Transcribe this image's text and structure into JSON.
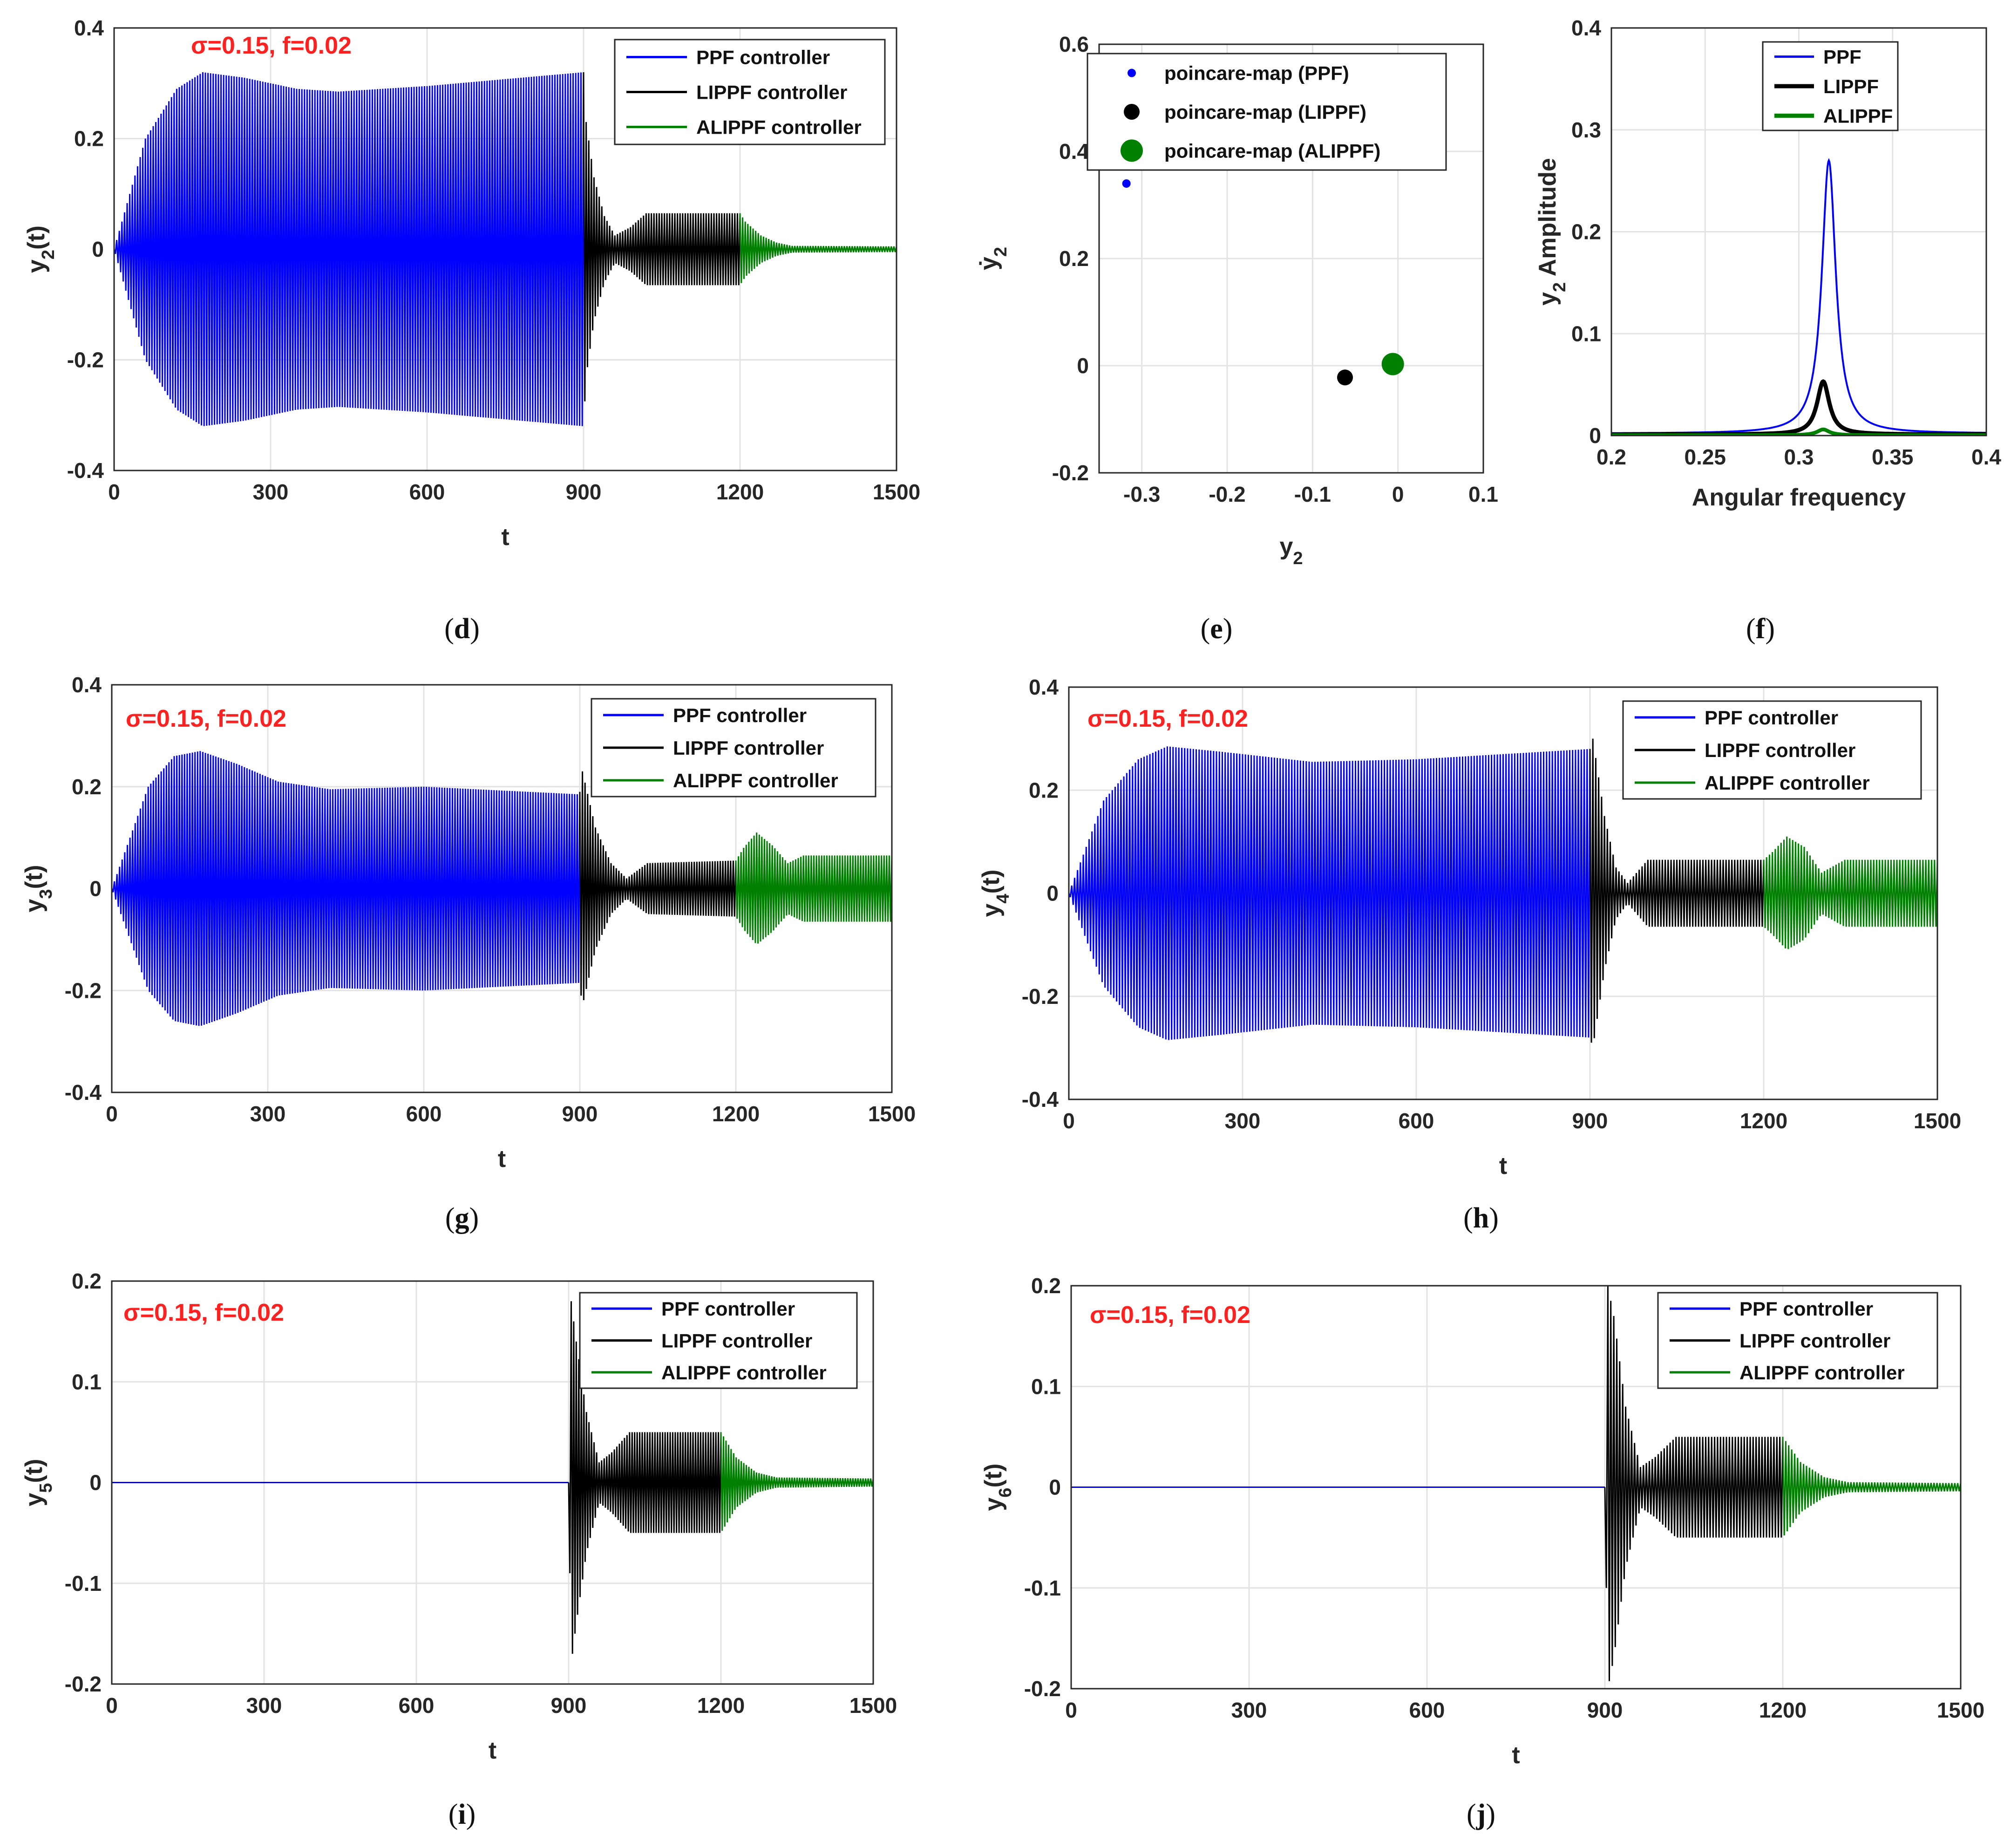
{
  "colors": {
    "ppf": "#0000ff",
    "lippf": "#000000",
    "alippf": "#008000",
    "annotation": "#ff2020",
    "grid": "#e3e3e3"
  },
  "chart_data": [
    {
      "id": "d",
      "type": "line",
      "caption_letter": "d",
      "annotation": "σ=0.15, f=0.02",
      "xlabel": "t",
      "ylabel": "y2(t)",
      "ylabel_main": "y",
      "ylabel_sub": "2",
      "ylabel_tail": "(t)",
      "xlim": [
        0,
        1500
      ],
      "ylim": [
        -0.4,
        0.4
      ],
      "xticks": [
        0,
        300,
        600,
        900,
        1200,
        1500
      ],
      "yticks": [
        -0.4,
        -0.2,
        0,
        0.2,
        0.4
      ],
      "ytick_labels": [
        "-0.4",
        "-0.2",
        "0",
        "0.2",
        "0.4"
      ],
      "legend": [
        "PPF controller",
        "LIPPF controller",
        "ALIPPF controller"
      ],
      "legend_position": "top-right",
      "series": [
        {
          "name": "PPF controller",
          "color": "#0000ff",
          "t_range": [
            0,
            900
          ],
          "envelope": {
            "t": [
              0,
              60,
              120,
              170,
              250,
              350,
              430,
              600,
              900
            ],
            "amp": [
              0.0,
              0.2,
              0.29,
              0.32,
              0.31,
              0.29,
              0.285,
              0.295,
              0.32
            ]
          }
        },
        {
          "name": "LIPPF controller",
          "color": "#000000",
          "t_range": [
            900,
            1200
          ],
          "envelope": {
            "t": [
              900,
              905,
              920,
              940,
              960,
              990,
              1020,
              1200
            ],
            "amp": [
              0.32,
              0.23,
              0.13,
              0.06,
              0.025,
              0.04,
              0.065,
              0.065
            ]
          }
        },
        {
          "name": "ALIPPF controller",
          "color": "#008000",
          "t_range": [
            1200,
            1500
          ],
          "envelope": {
            "t": [
              1200,
              1210,
              1240,
              1270,
              1300,
              1500
            ],
            "amp": [
              0.065,
              0.05,
              0.025,
              0.012,
              0.006,
              0.005
            ]
          }
        }
      ]
    },
    {
      "id": "e",
      "type": "scatter",
      "caption_letter": "e",
      "xlabel": "y2",
      "xlabel_main": "y",
      "xlabel_sub": "2",
      "ylabel": "ẏ2",
      "ylabel_main": "ẏ",
      "ylabel_sub": "2",
      "xlim": [
        -0.35,
        0.1
      ],
      "ylim": [
        -0.2,
        0.6
      ],
      "xticks": [
        -0.3,
        -0.2,
        -0.1,
        0,
        0.1
      ],
      "xtick_labels": [
        "-0.3",
        "-0.2",
        "-0.1",
        "0",
        "0.1"
      ],
      "yticks": [
        -0.2,
        0,
        0.2,
        0.4,
        0.6
      ],
      "ytick_labels": [
        "-0.2",
        "0",
        "0.2",
        "0.4",
        "0.6"
      ],
      "legend": [
        "poincare-map (PPF)",
        "poincare-map (LIPPF)",
        "poincare-map (ALIPPF)"
      ],
      "legend_position": "top-right",
      "series": [
        {
          "name": "poincare-map (PPF)",
          "color": "#0000ff",
          "x": [
            -0.318
          ],
          "y": [
            0.34
          ],
          "size": "small"
        },
        {
          "name": "poincare-map (LIPPF)",
          "color": "#000000",
          "x": [
            -0.062
          ],
          "y": [
            -0.022
          ],
          "size": "medium"
        },
        {
          "name": "poincare-map (ALIPPF)",
          "color": "#008000",
          "x": [
            -0.006
          ],
          "y": [
            0.003
          ],
          "size": "large"
        }
      ]
    },
    {
      "id": "f",
      "type": "line",
      "caption_letter": "f",
      "xlabel": "Angular frequency",
      "ylabel": "y2 Amplitude",
      "ylabel_main": "y",
      "ylabel_sub": "2",
      "ylabel_tail": " Amplitude",
      "xlim": [
        0.2,
        0.4
      ],
      "ylim": [
        0,
        0.4
      ],
      "xticks": [
        0.2,
        0.25,
        0.3,
        0.35,
        0.4
      ],
      "xtick_labels": [
        "0.2",
        "0.25",
        "0.3",
        "0.35",
        "0.4"
      ],
      "yticks": [
        0,
        0.1,
        0.2,
        0.3,
        0.4
      ],
      "ytick_labels": [
        "0",
        "0.1",
        "0.2",
        "0.3",
        "0.4"
      ],
      "legend": [
        "PPF",
        "LIPPF",
        "ALIPPF"
      ],
      "legend_position": "top-right",
      "series": [
        {
          "name": "PPF",
          "color": "#0000ff",
          "peak_x": 0.316,
          "peak_y": 0.27,
          "width": 0.0045,
          "base": 0.002
        },
        {
          "name": "LIPPF",
          "color": "#000000",
          "peak_x": 0.313,
          "peak_y": 0.053,
          "width": 0.004,
          "base": 0.001
        },
        {
          "name": "ALIPPF",
          "color": "#008000",
          "peak_x": 0.313,
          "peak_y": 0.006,
          "width": 0.004,
          "base": 0.0003
        }
      ]
    },
    {
      "id": "g",
      "type": "line",
      "caption_letter": "g",
      "annotation": "σ=0.15, f=0.02",
      "xlabel": "t",
      "ylabel": "y3(t)",
      "ylabel_main": "y",
      "ylabel_sub": "3",
      "ylabel_tail": "(t)",
      "xlim": [
        0,
        1500
      ],
      "ylim": [
        -0.4,
        0.4
      ],
      "xticks": [
        0,
        300,
        600,
        900,
        1200,
        1500
      ],
      "yticks": [
        -0.4,
        -0.2,
        0,
        0.2,
        0.4
      ],
      "ytick_labels": [
        "-0.4",
        "-0.2",
        "0",
        "0.2",
        "0.4"
      ],
      "legend": [
        "PPF controller",
        "LIPPF controller",
        "ALIPPF controller"
      ],
      "legend_position": "top-right",
      "series": [
        {
          "name": "PPF controller",
          "color": "#0000ff",
          "t_range": [
            0,
            900
          ],
          "envelope": {
            "t": [
              0,
              70,
              120,
              170,
              240,
              320,
              420,
              600,
              900
            ],
            "amp": [
              0.0,
              0.2,
              0.26,
              0.27,
              0.245,
              0.21,
              0.195,
              0.2,
              0.185
            ]
          }
        },
        {
          "name": "LIPPF controller",
          "color": "#000000",
          "t_range": [
            900,
            1200
          ],
          "envelope": {
            "t": [
              900,
              905,
              930,
              960,
              990,
              1030,
              1200
            ],
            "amp": [
              0.19,
              0.23,
              0.12,
              0.05,
              0.02,
              0.05,
              0.055
            ]
          }
        },
        {
          "name": "ALIPPF controller",
          "color": "#008000",
          "t_range": [
            1200,
            1500
          ],
          "envelope": {
            "t": [
              1200,
              1215,
              1240,
              1270,
              1300,
              1330,
              1500
            ],
            "amp": [
              0.055,
              0.08,
              0.11,
              0.085,
              0.05,
              0.065,
              0.065
            ]
          }
        }
      ]
    },
    {
      "id": "h",
      "type": "line",
      "caption_letter": "h",
      "annotation": "σ=0.15, f=0.02",
      "xlabel": "t",
      "ylabel": "y4(t)",
      "ylabel_main": "y",
      "ylabel_sub": "4",
      "ylabel_tail": "(t)",
      "xlim": [
        0,
        1500
      ],
      "ylim": [
        -0.4,
        0.4
      ],
      "xticks": [
        0,
        300,
        600,
        900,
        1200,
        1500
      ],
      "yticks": [
        -0.4,
        -0.2,
        0,
        0.2,
        0.4
      ],
      "ytick_labels": [
        "-0.4",
        "-0.2",
        "0",
        "0.2",
        "0.4"
      ],
      "legend": [
        "PPF controller",
        "LIPPF controller",
        "ALIPPF controller"
      ],
      "legend_position": "top-right",
      "series": [
        {
          "name": "PPF controller",
          "color": "#0000ff",
          "t_range": [
            0,
            900
          ],
          "envelope": {
            "t": [
              0,
              60,
              120,
              170,
              260,
              420,
              600,
              900
            ],
            "amp": [
              0.0,
              0.18,
              0.26,
              0.285,
              0.275,
              0.255,
              0.26,
              0.28
            ]
          }
        },
        {
          "name": "LIPPF controller",
          "color": "#000000",
          "t_range": [
            900,
            1200
          ],
          "envelope": {
            "t": [
              900,
              905,
              925,
              945,
              965,
              1000,
              1200
            ],
            "amp": [
              0.28,
              0.3,
              0.15,
              0.05,
              0.02,
              0.065,
              0.065
            ]
          }
        },
        {
          "name": "ALIPPF controller",
          "color": "#008000",
          "t_range": [
            1200,
            1500
          ],
          "envelope": {
            "t": [
              1200,
              1215,
              1240,
              1270,
              1300,
              1340,
              1500
            ],
            "amp": [
              0.065,
              0.08,
              0.11,
              0.09,
              0.04,
              0.065,
              0.065
            ]
          }
        }
      ]
    },
    {
      "id": "i",
      "type": "line",
      "caption_letter": "i",
      "annotation": "σ=0.15, f=0.02",
      "xlabel": "t",
      "ylabel": "y5(t)",
      "ylabel_main": "y",
      "ylabel_sub": "5",
      "ylabel_tail": "(t)",
      "xlim": [
        0,
        1500
      ],
      "ylim": [
        -0.2,
        0.2
      ],
      "xticks": [
        0,
        300,
        600,
        900,
        1200,
        1500
      ],
      "yticks": [
        -0.2,
        -0.1,
        0,
        0.1,
        0.2
      ],
      "ytick_labels": [
        "-0.2",
        "-0.1",
        "0",
        "0.1",
        "0.2"
      ],
      "legend": [
        "PPF controller",
        "LIPPF controller",
        "ALIPPF controller"
      ],
      "legend_position": "top-right",
      "series": [
        {
          "name": "PPF controller",
          "color": "#0000ff",
          "t_range": [
            0,
            900
          ],
          "envelope": {
            "t": [
              0,
              900
            ],
            "amp": [
              0,
              0
            ]
          }
        },
        {
          "name": "LIPPF controller",
          "color": "#000000",
          "t_range": [
            900,
            1200
          ],
          "envelope": {
            "t": [
              900,
              905,
              915,
              935,
              960,
              985,
              1020,
              1200
            ],
            "amp": [
              0.0,
              0.18,
              0.14,
              0.07,
              0.02,
              0.03,
              0.05,
              0.05
            ]
          }
        },
        {
          "name": "ALIPPF controller",
          "color": "#008000",
          "t_range": [
            1200,
            1500
          ],
          "envelope": {
            "t": [
              1200,
              1230,
              1270,
              1310,
              1500
            ],
            "amp": [
              0.05,
              0.025,
              0.01,
              0.005,
              0.004
            ]
          }
        }
      ]
    },
    {
      "id": "j",
      "type": "line",
      "caption_letter": "j",
      "annotation": "σ=0.15, f=0.02",
      "xlabel": "t",
      "ylabel": "y6(t)",
      "ylabel_main": "y",
      "ylabel_sub": "6",
      "ylabel_tail": "(t)",
      "xlim": [
        0,
        1500
      ],
      "ylim": [
        -0.2,
        0.2
      ],
      "xticks": [
        0,
        300,
        600,
        900,
        1200,
        1500
      ],
      "yticks": [
        -0.2,
        -0.1,
        0,
        0.1,
        0.2
      ],
      "ytick_labels": [
        "-0.2",
        "-0.1",
        "0",
        "0.1",
        "0.2"
      ],
      "legend": [
        "PPF controller",
        "LIPPF controller",
        "ALIPPF controller"
      ],
      "legend_position": "top-right",
      "series": [
        {
          "name": "PPF controller",
          "color": "#0000ff",
          "t_range": [
            0,
            900
          ],
          "envelope": {
            "t": [
              0,
              900
            ],
            "amp": [
              0,
              0
            ]
          }
        },
        {
          "name": "LIPPF controller",
          "color": "#000000",
          "t_range": [
            900,
            1200
          ],
          "envelope": {
            "t": [
              900,
              905,
              915,
              935,
              960,
              985,
              1020,
              1200
            ],
            "amp": [
              0.0,
              0.2,
              0.17,
              0.08,
              0.02,
              0.03,
              0.05,
              0.05
            ]
          }
        },
        {
          "name": "ALIPPF controller",
          "color": "#008000",
          "t_range": [
            1200,
            1500
          ],
          "envelope": {
            "t": [
              1200,
              1230,
              1270,
              1310,
              1500
            ],
            "amp": [
              0.05,
              0.025,
              0.01,
              0.005,
              0.004
            ]
          }
        }
      ]
    }
  ]
}
